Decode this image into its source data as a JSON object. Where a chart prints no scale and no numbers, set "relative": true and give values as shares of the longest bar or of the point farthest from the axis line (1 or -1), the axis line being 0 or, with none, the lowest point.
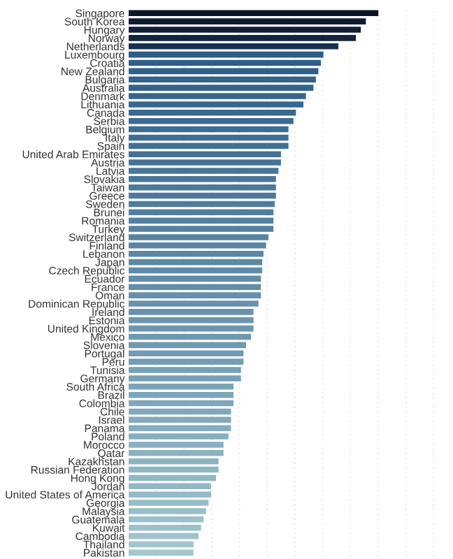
{
  "chart_data": {
    "type": "bar",
    "orientation": "horizontal",
    "relative": true,
    "grid": "x",
    "categories": [
      "Singapore",
      "South Korea",
      "Hungary",
      "Norway",
      "Netherlands",
      "Luxembourg",
      "Croatia",
      "New Zealand",
      "Bulgaria",
      "Australia",
      "Denmark",
      "Lithuania",
      "Canada",
      "Serbia",
      "Belgium",
      "Italy",
      "Spain",
      "United Arab Emirates",
      "Austria",
      "Latvia",
      "Slovakia",
      "Taiwan",
      "Greece",
      "Sweden",
      "Brunei",
      "Romania",
      "Turkey",
      "Switzerland",
      "Finland",
      "Lebanon",
      "Japan",
      "Czech Republic",
      "Ecuador",
      "France",
      "Oman",
      "Dominican Republic",
      "Ireland",
      "Estonia",
      "United Kingdom",
      "Mexico",
      "Slovenia",
      "Portugal",
      "Peru",
      "Tunisia",
      "Germany",
      "South Africa",
      "Brazil",
      "Colombia",
      "Chile",
      "Israel",
      "Panama",
      "Poland",
      "Morocco",
      "Qatar",
      "Kazakhstan",
      "Russian Federation",
      "Hong Kong",
      "Jordan",
      "United States of America",
      "Georgia",
      "Malaysia",
      "Guatemala",
      "Kuwait",
      "Cambodia",
      "Thailand",
      "Pakistan"
    ],
    "values": [
      1,
      0.95,
      0.93,
      0.91,
      0.84,
      0.78,
      0.77,
      0.76,
      0.75,
      0.74,
      0.71,
      0.7,
      0.67,
      0.66,
      0.64,
      0.64,
      0.64,
      0.61,
      0.61,
      0.6,
      0.59,
      0.59,
      0.59,
      0.585,
      0.58,
      0.58,
      0.58,
      0.56,
      0.55,
      0.54,
      0.535,
      0.535,
      0.53,
      0.53,
      0.53,
      0.52,
      0.5,
      0.5,
      0.5,
      0.49,
      0.47,
      0.46,
      0.46,
      0.45,
      0.45,
      0.42,
      0.42,
      0.42,
      0.41,
      0.41,
      0.41,
      0.4,
      0.38,
      0.38,
      0.36,
      0.36,
      0.35,
      0.33,
      0.33,
      0.32,
      0.31,
      0.3,
      0.29,
      0.28,
      0.26,
      0.26
    ],
    "colors": [
      "#0b1526",
      "#0e1b30",
      "#101f36",
      "#12243e",
      "#173150",
      "#2b5c88",
      "#2d5e89",
      "#2f608a",
      "#31618c",
      "#33638d",
      "#35658e",
      "#37678f",
      "#396890",
      "#3b6a92",
      "#3d6c93",
      "#3f6e94",
      "#417095",
      "#437196",
      "#457397",
      "#477599",
      "#49779a",
      "#4b789b",
      "#4d7a9c",
      "#4f7c9d",
      "#517e9f",
      "#5380a0",
      "#5581a1",
      "#5783a2",
      "#5985a3",
      "#5b87a5",
      "#5d88a6",
      "#5f8aa7",
      "#618ca8",
      "#638ea9",
      "#6590ab",
      "#6791ac",
      "#6993ad",
      "#6b95ae",
      "#6c97af",
      "#6e98b0",
      "#709ab2",
      "#729cb3",
      "#749eb4",
      "#76a0b5",
      "#78a1b6",
      "#7aa3b8",
      "#7ca5b9",
      "#7ea7ba",
      "#80a8bb",
      "#82aabc",
      "#84acbe",
      "#86aebf",
      "#88b0c0",
      "#8ab1c1",
      "#8cb3c2",
      "#8eb5c3",
      "#90b7c5",
      "#92b8c6",
      "#94bac7",
      "#96bcc8",
      "#98bec9",
      "#9ac0cb",
      "#9cc1cc",
      "#9ec3cd",
      "#a0c5ce",
      "#a2c7cf"
    ]
  }
}
